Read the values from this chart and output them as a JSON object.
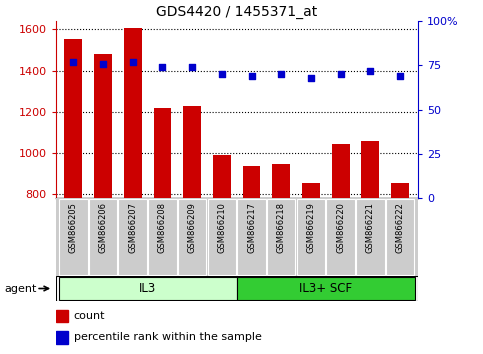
{
  "title": "GDS4420 / 1455371_at",
  "categories": [
    "GSM866205",
    "GSM866206",
    "GSM866207",
    "GSM866208",
    "GSM866209",
    "GSM866210",
    "GSM866217",
    "GSM866218",
    "GSM866219",
    "GSM866220",
    "GSM866221",
    "GSM866222"
  ],
  "counts": [
    1555,
    1480,
    1605,
    1220,
    1230,
    990,
    935,
    945,
    855,
    1045,
    1060,
    855
  ],
  "percentiles": [
    77,
    76,
    77,
    74,
    74,
    70,
    69,
    70,
    68,
    70,
    72,
    69
  ],
  "bar_color": "#cc0000",
  "dot_color": "#0000cc",
  "ylim_left": [
    780,
    1640
  ],
  "ylim_right": [
    0,
    100
  ],
  "yticks_left": [
    800,
    1000,
    1200,
    1400,
    1600
  ],
  "yticks_right": [
    0,
    25,
    50,
    75,
    100
  ],
  "groups": [
    {
      "label": "IL3",
      "indices": [
        0,
        1,
        2,
        3,
        4,
        5
      ],
      "color": "#ccffcc"
    },
    {
      "label": "IL3+ SCF",
      "indices": [
        6,
        7,
        8,
        9,
        10,
        11
      ],
      "color": "#33cc33"
    }
  ],
  "agent_label": "agent",
  "legend_count_label": "count",
  "legend_percentile_label": "percentile rank within the sample",
  "background_color": "#ffffff",
  "left_axis_color": "#cc0000",
  "right_axis_color": "#0000cc",
  "tick_label_bg": "#cccccc",
  "bar_xlim": [
    -0.5,
    11.5
  ]
}
